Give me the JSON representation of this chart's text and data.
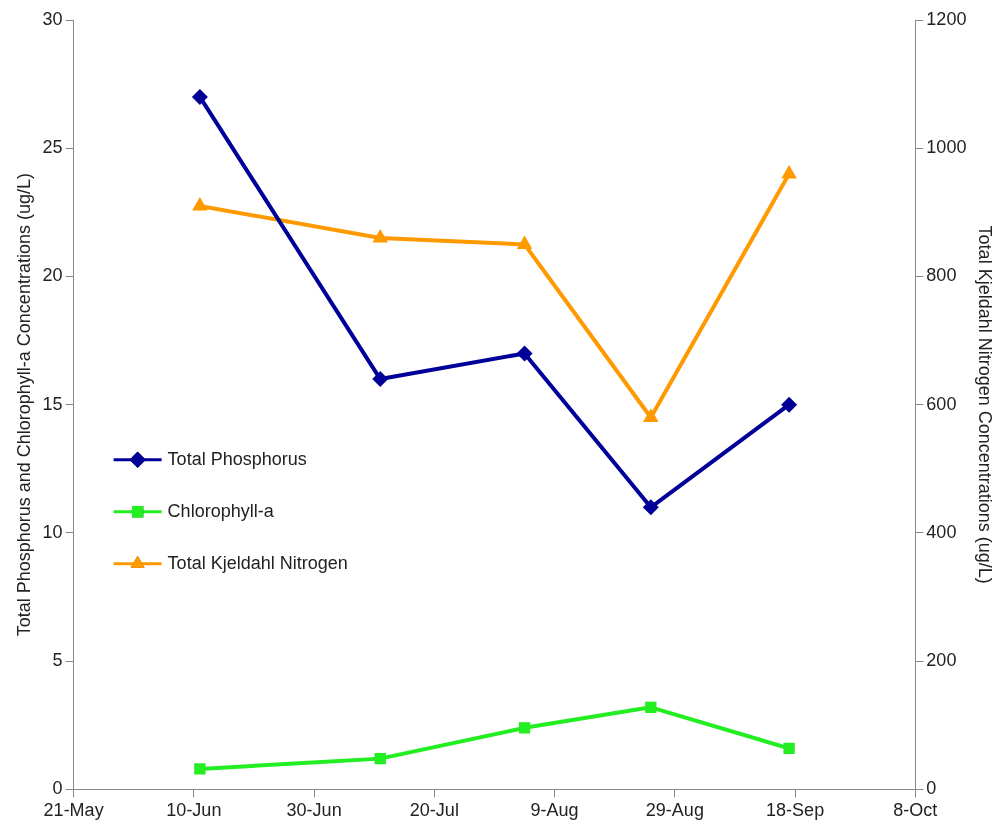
{
  "chart_data": {
    "type": "line",
    "ylabel": "Total Phosphorus and Chlorophyll-a Concentrations (ug/L)",
    "y2label": "Total Kjeldahl Nitrogen Concentrations (ug/L)",
    "x": [
      "--06-11",
      "--07-11",
      "--08-04",
      "--08-25",
      "--09-17"
    ],
    "xlim": [
      "--05-21",
      "--10-08"
    ],
    "xticks": [
      {
        "value": "--05-21",
        "label": "21-May"
      },
      {
        "value": "--06-10",
        "label": "10-Jun"
      },
      {
        "value": "--06-30",
        "label": "30-Jun"
      },
      {
        "value": "--07-20",
        "label": "20-Jul"
      },
      {
        "value": "--08-09",
        "label": "9-Aug"
      },
      {
        "value": "--08-29",
        "label": "29-Aug"
      },
      {
        "value": "--09-18",
        "label": "18-Sep"
      },
      {
        "value": "--10-08",
        "label": "8-Oct"
      }
    ],
    "ylim": [
      0,
      30
    ],
    "yticks": [
      0,
      5,
      10,
      15,
      20,
      25,
      30
    ],
    "y2lim": [
      0,
      1200
    ],
    "y2ticks": [
      0,
      200,
      400,
      600,
      800,
      1000,
      1200
    ],
    "series": [
      {
        "name": "Total Phosphorus",
        "color": "#000099",
        "marker": "diamond",
        "values": [
          27,
          16,
          17,
          11,
          15
        ]
      },
      {
        "name": "Chlorophyll-a",
        "color": "#22ee22",
        "marker": "square",
        "values": [
          0.8,
          1.2,
          2.4,
          3.2,
          1.6
        ]
      },
      {
        "name": "Total Kjeldahl Nitrogen",
        "color": "#ff9900",
        "marker": "triangle",
        "axis": "y2",
        "values": [
          910,
          860,
          850,
          580,
          960
        ]
      }
    ],
    "legend": "left",
    "grid": false
  }
}
